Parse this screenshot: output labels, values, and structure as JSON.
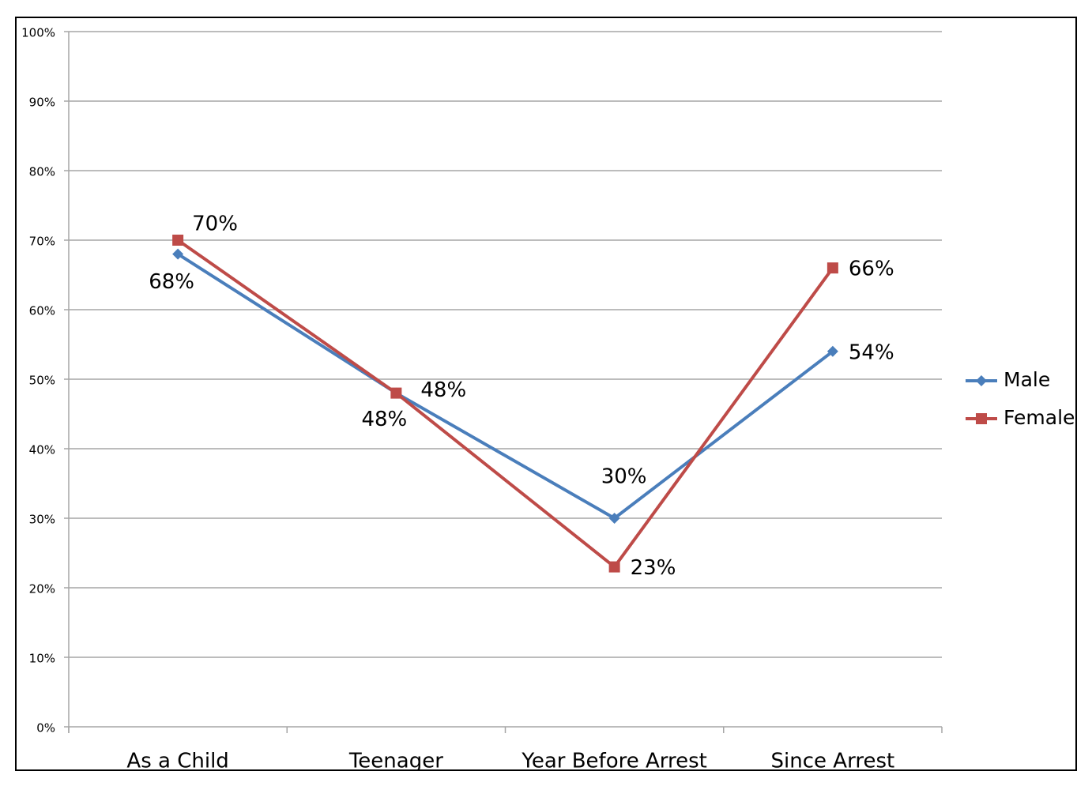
{
  "chart_data": {
    "type": "line",
    "categories": [
      "As a Child",
      "Teenager",
      "Year Before Arrest",
      "Since Arrest"
    ],
    "series": [
      {
        "name": "Male",
        "color": "#4a7ebb",
        "marker": "diamond",
        "values": [
          68,
          48,
          30,
          54
        ],
        "value_labels": [
          "68%",
          "48%",
          "30%",
          "54%"
        ]
      },
      {
        "name": "Female",
        "color": "#be4b48",
        "marker": "square",
        "values": [
          70,
          48,
          23,
          66
        ],
        "value_labels": [
          "70%",
          "48%",
          "23%",
          "66%"
        ]
      }
    ],
    "ylim": [
      0,
      100
    ],
    "yticks": [
      {
        "value": 0,
        "label": "0%"
      },
      {
        "value": 10,
        "label": "10%"
      },
      {
        "value": 20,
        "label": "20%"
      },
      {
        "value": 30,
        "label": "30%"
      },
      {
        "value": 40,
        "label": "40%"
      },
      {
        "value": 50,
        "label": "50%"
      },
      {
        "value": 60,
        "label": "60%"
      },
      {
        "value": 70,
        "label": "70%"
      },
      {
        "value": 80,
        "label": "80%"
      },
      {
        "value": 90,
        "label": "90%"
      },
      {
        "value": 100,
        "label": "100%"
      }
    ],
    "grid": true,
    "legend": "right"
  }
}
